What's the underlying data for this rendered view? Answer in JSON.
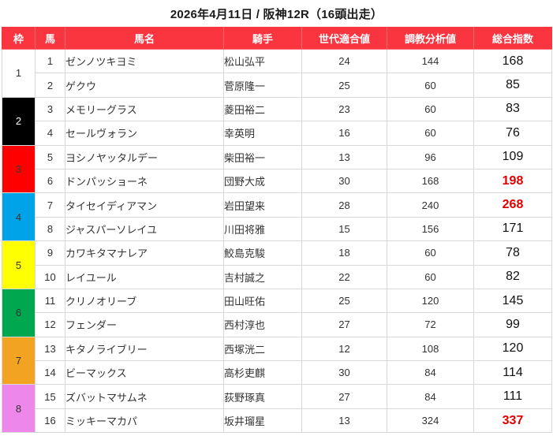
{
  "title": "2026年4月11日 / 阪神12R（16頭出走）",
  "colors": {
    "header_bg": "#fb3540",
    "header_text": "#ffffff",
    "total_column_bg": "#fafa8c",
    "total_hot_text": "#e00000",
    "body_text": "#333333"
  },
  "table": {
    "headers": [
      "枠",
      "馬",
      "馬名",
      "騎手",
      "世代適合値",
      "調教分析値",
      "総合指数"
    ],
    "frames": [
      {
        "num": "1",
        "color": "#ffffff",
        "text": "#333333"
      },
      {
        "num": "2",
        "color": "#000000",
        "text": "#ffffff"
      },
      {
        "num": "3",
        "color": "#fe0000",
        "text": "#3a3a3a"
      },
      {
        "num": "4",
        "color": "#00a2e8",
        "text": "#333333"
      },
      {
        "num": "5",
        "color": "#feff00",
        "text": "#333333"
      },
      {
        "num": "6",
        "color": "#00a74e",
        "text": "#333333"
      },
      {
        "num": "7",
        "color": "#f3a322",
        "text": "#333333"
      },
      {
        "num": "8",
        "color": "#ee87ea",
        "text": "#333333"
      }
    ],
    "rows": [
      {
        "horse_no": "1",
        "name": "ゼンノツキヨミ",
        "jockey": "松山弘平",
        "gen": "24",
        "train": "144",
        "total": "168",
        "hot": false
      },
      {
        "horse_no": "2",
        "name": "ゲクウ",
        "jockey": "菅原隆一",
        "gen": "25",
        "train": "60",
        "total": "85",
        "hot": false
      },
      {
        "horse_no": "3",
        "name": "メモリーグラス",
        "jockey": "菱田裕二",
        "gen": "23",
        "train": "60",
        "total": "83",
        "hot": false
      },
      {
        "horse_no": "4",
        "name": "セールヴォラン",
        "jockey": "幸英明",
        "gen": "16",
        "train": "60",
        "total": "76",
        "hot": false
      },
      {
        "horse_no": "5",
        "name": "ヨシノヤッタルデー",
        "jockey": "柴田裕一",
        "gen": "13",
        "train": "96",
        "total": "109",
        "hot": false
      },
      {
        "horse_no": "6",
        "name": "ドンパッショーネ",
        "jockey": "団野大成",
        "gen": "30",
        "train": "168",
        "total": "198",
        "hot": true
      },
      {
        "horse_no": "7",
        "name": "タイセイディアマン",
        "jockey": "岩田望来",
        "gen": "28",
        "train": "240",
        "total": "268",
        "hot": true
      },
      {
        "horse_no": "8",
        "name": "ジャスパーソレイユ",
        "jockey": "川田将雅",
        "gen": "15",
        "train": "156",
        "total": "171",
        "hot": false
      },
      {
        "horse_no": "9",
        "name": "カワキタマナレア",
        "jockey": "鮫島克駿",
        "gen": "18",
        "train": "60",
        "total": "78",
        "hot": false
      },
      {
        "horse_no": "10",
        "name": "レイユール",
        "jockey": "吉村誠之",
        "gen": "22",
        "train": "60",
        "total": "82",
        "hot": false
      },
      {
        "horse_no": "11",
        "name": "クリノオリーブ",
        "jockey": "田山旺佑",
        "gen": "25",
        "train": "120",
        "total": "145",
        "hot": false
      },
      {
        "horse_no": "12",
        "name": "フェンダー",
        "jockey": "西村淳也",
        "gen": "27",
        "train": "72",
        "total": "99",
        "hot": false
      },
      {
        "horse_no": "13",
        "name": "キタノライブリー",
        "jockey": "西塚洸二",
        "gen": "12",
        "train": "108",
        "total": "120",
        "hot": false
      },
      {
        "horse_no": "14",
        "name": "ビーマックス",
        "jockey": "高杉吏麒",
        "gen": "30",
        "train": "84",
        "total": "114",
        "hot": false
      },
      {
        "horse_no": "15",
        "name": "ズバットマサムネ",
        "jockey": "荻野琢真",
        "gen": "27",
        "train": "84",
        "total": "111",
        "hot": false
      },
      {
        "horse_no": "16",
        "name": "ミッキーマカパ",
        "jockey": "坂井瑠星",
        "gen": "13",
        "train": "324",
        "total": "337",
        "hot": true
      }
    ]
  }
}
